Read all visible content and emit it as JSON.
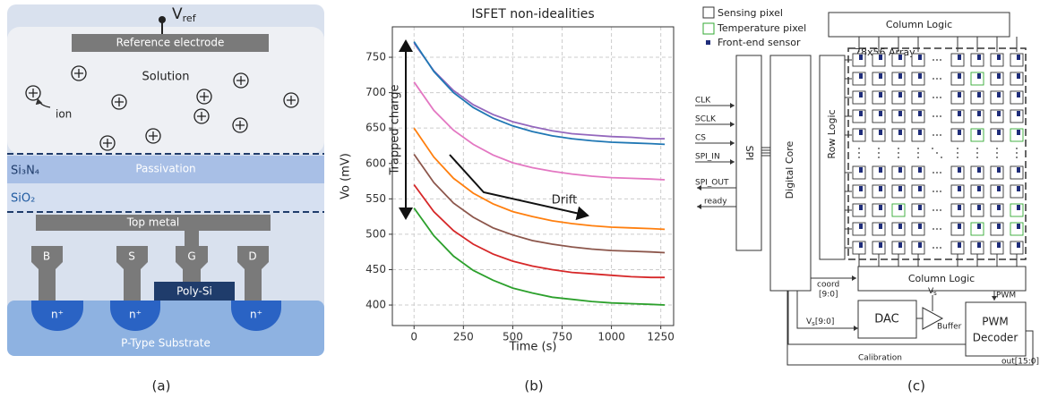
{
  "captions": [
    "(a)",
    "(b)",
    "(c)"
  ],
  "panel_a": {
    "vref": {
      "symbol": "V",
      "subscript": "ref"
    },
    "reference_electrode": "Reference electrode",
    "solution": "Solution",
    "ion": "ion",
    "si3n4": "Si₃N₄",
    "passivation": "Passivation",
    "sio2": "SiO₂",
    "top_metal": "Top metal",
    "terminals": [
      "B",
      "S",
      "G",
      "D"
    ],
    "poly_si": "Poly-Si",
    "n_plus": [
      "n⁺",
      "n⁺",
      "n⁺"
    ],
    "substrate": "P-Type Substrate"
  },
  "chart_data": {
    "type": "line",
    "title": "ISFET non-idealities",
    "xlabel": "Time (s)",
    "ylabel": "Vo (mV)",
    "x": [
      0,
      100,
      200,
      300,
      400,
      500,
      600,
      700,
      800,
      900,
      1000,
      1100,
      1200,
      1270
    ],
    "series": [
      {
        "color": "#9467bd",
        "values": [
          770,
          731,
          703,
          683,
          669,
          659,
          652,
          646,
          642,
          640,
          638,
          637,
          635,
          635
        ]
      },
      {
        "color": "#1f77b4",
        "values": [
          772,
          730,
          700,
          679,
          664,
          653,
          645,
          639,
          635,
          632,
          630,
          629,
          628,
          627
        ]
      },
      {
        "color": "#e377c2",
        "values": [
          715,
          675,
          647,
          627,
          612,
          601,
          594,
          589,
          585,
          582,
          580,
          579,
          578,
          577
        ]
      },
      {
        "color": "#ff7f0e",
        "values": [
          650,
          609,
          579,
          558,
          543,
          532,
          525,
          519,
          515,
          512,
          510,
          509,
          508,
          507
        ]
      },
      {
        "color": "#8c564b",
        "values": [
          613,
          573,
          544,
          524,
          509,
          499,
          491,
          486,
          482,
          479,
          477,
          476,
          475,
          474
        ]
      },
      {
        "color": "#d62728",
        "values": [
          570,
          532,
          505,
          486,
          472,
          462,
          455,
          450,
          446,
          444,
          442,
          440,
          439,
          439
        ]
      },
      {
        "color": "#2ca02c",
        "values": [
          537,
          498,
          469,
          449,
          435,
          424,
          417,
          411,
          408,
          405,
          403,
          402,
          401,
          400
        ]
      }
    ],
    "xlim": [
      -110,
      1315
    ],
    "ylim": [
      371,
      793
    ],
    "xticks": [
      0,
      250,
      500,
      750,
      1000,
      1250
    ],
    "yticks": [
      400,
      450,
      500,
      550,
      600,
      650,
      700,
      750
    ],
    "grid": true,
    "annotations": [
      "Trapped charge",
      "Drift"
    ]
  },
  "panel_c": {
    "legend": [
      "Sensing pixel",
      "Temperature pixel",
      "Front-end sensor"
    ],
    "column_logic": [
      "Column Logic",
      "Column Logic"
    ],
    "array": "78x56 Array",
    "spi_signals": [
      "CLK",
      "SCLK",
      "CS",
      "SPI_IN",
      "SPI_OUT",
      "ready"
    ],
    "spi": "SPI",
    "digital_core": "Digital Core",
    "row_logic": "Row Logic",
    "coord": [
      "coord",
      "[9:0]"
    ],
    "vs_bus": {
      "symbol": "V",
      "subscript": "s",
      "suffix": "[9:0]"
    },
    "vs": {
      "symbol": "V",
      "subscript": "s"
    },
    "dac": "DAC",
    "buffer": "Buffer",
    "pwm": "PWM",
    "pwm_decoder": [
      "PWM",
      "Decoder"
    ],
    "out": "out[15:0]",
    "calibration": "Calibration"
  }
}
